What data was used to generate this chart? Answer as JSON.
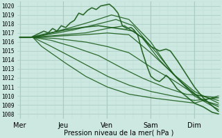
{
  "bg_color": "#cce8e0",
  "grid_color_major": "#aaccc4",
  "grid_color_minor": "#bbddd6",
  "line_color": "#1a5c1a",
  "xlabel": "Pression niveau de la mer( hPa )",
  "ylim": [
    1007.5,
    1020.5
  ],
  "yticks": [
    1008,
    1009,
    1010,
    1011,
    1012,
    1013,
    1014,
    1015,
    1016,
    1017,
    1018,
    1019,
    1020
  ],
  "xtick_labels": [
    "Mer",
    "Jeu",
    "Ven",
    "Sam",
    "Dim"
  ],
  "xtick_positions": [
    0,
    1,
    2,
    3,
    4
  ],
  "xlim": [
    -0.05,
    4.6
  ],
  "figsize": [
    3.2,
    2.0
  ],
  "dpi": 100
}
